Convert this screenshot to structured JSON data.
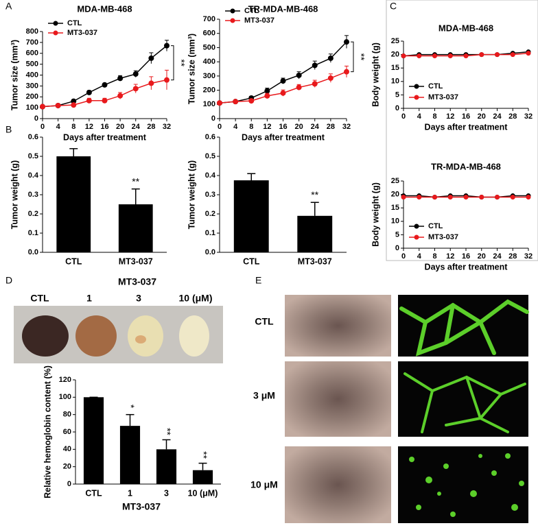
{
  "chart_data": [
    {
      "type": "line",
      "title": "MDA-MB-468",
      "xlabel": "Days after treatment",
      "ylabel": "Tumor size (mm³)",
      "x": [
        0,
        4,
        8,
        12,
        16,
        20,
        24,
        28,
        32
      ],
      "xlim": [
        0,
        32
      ],
      "xticks": [
        0,
        4,
        8,
        12,
        16,
        20,
        24,
        28,
        32
      ],
      "ylim": [
        0,
        800
      ],
      "yticks": [
        0,
        100,
        200,
        300,
        400,
        500,
        600,
        700,
        800
      ],
      "legend": "upper left",
      "annotation": "**",
      "series": [
        {
          "name": "CTL",
          "color": "#000000",
          "values": [
            110,
            120,
            160,
            240,
            310,
            370,
            410,
            555,
            670
          ],
          "errors": [
            8,
            8,
            12,
            18,
            15,
            25,
            30,
            50,
            50
          ]
        },
        {
          "name": "MT3-037",
          "color": "#e8191c",
          "values": [
            110,
            120,
            125,
            165,
            165,
            210,
            275,
            325,
            355
          ],
          "errors": [
            8,
            8,
            12,
            22,
            22,
            30,
            40,
            60,
            90
          ]
        }
      ]
    },
    {
      "type": "line",
      "title": "TR-MDA-MB-468",
      "xlabel": "Days after treatment",
      "ylabel": "Tumor size (mm³)",
      "x": [
        0,
        4,
        8,
        12,
        16,
        20,
        24,
        28,
        32
      ],
      "xlim": [
        0,
        32
      ],
      "xticks": [
        0,
        4,
        8,
        12,
        16,
        20,
        24,
        28,
        32
      ],
      "ylim": [
        0,
        700
      ],
      "yticks": [
        0,
        100,
        200,
        300,
        400,
        500,
        600,
        700
      ],
      "legend": "upper left",
      "annotation": "**",
      "series": [
        {
          "name": "CTL",
          "color": "#000000",
          "values": [
            110,
            120,
            145,
            195,
            265,
            305,
            375,
            425,
            540
          ],
          "errors": [
            8,
            8,
            12,
            20,
            20,
            25,
            30,
            30,
            45
          ]
        },
        {
          "name": "MT3-037",
          "color": "#e8191c",
          "values": [
            110,
            120,
            125,
            160,
            180,
            220,
            245,
            285,
            330
          ],
          "errors": [
            8,
            8,
            12,
            18,
            22,
            20,
            25,
            30,
            40
          ]
        }
      ]
    },
    {
      "type": "bar",
      "ylabel": "Tumor weight (g)",
      "categories": [
        "CTL",
        "MT3-037"
      ],
      "values": [
        0.5,
        0.25
      ],
      "errors": [
        0.04,
        0.08
      ],
      "color": "#000000",
      "ylim": [
        0,
        0.6
      ],
      "yticks": [
        {
          "value": 0,
          "label": "0.0"
        },
        0.1,
        0.2,
        0.3,
        0.4,
        0.5,
        0.6
      ],
      "significance": [
        "**"
      ]
    },
    {
      "type": "bar",
      "ylabel": "Tumor weight (g)",
      "categories": [
        "CTL",
        "MT3-037"
      ],
      "values": [
        0.375,
        0.19
      ],
      "errors": [
        0.035,
        0.07
      ],
      "color": "#000000",
      "ylim": [
        0,
        0.6
      ],
      "yticks": [
        {
          "value": 0,
          "label": "0.0"
        },
        0.1,
        0.2,
        0.3,
        0.4,
        0.5,
        0.6
      ],
      "significance": [
        "**"
      ]
    },
    {
      "type": "line",
      "title": "MDA-MB-468",
      "xlabel": "Days after treatment",
      "ylabel": "Body weight (g)",
      "x": [
        0,
        4,
        8,
        12,
        16,
        20,
        24,
        28,
        32
      ],
      "xlim": [
        0,
        32
      ],
      "xticks": [
        0,
        4,
        8,
        12,
        16,
        20,
        24,
        28,
        32
      ],
      "ylim": [
        0,
        25
      ],
      "yticks": [
        0,
        5,
        10,
        15,
        20,
        25
      ],
      "legend": "lower left",
      "series": [
        {
          "name": "CTL",
          "color": "#000000",
          "values": [
            19.5,
            20,
            20,
            20,
            20,
            20,
            20,
            20.5,
            21
          ]
        },
        {
          "name": "MT3-037",
          "color": "#e8191c",
          "values": [
            19.5,
            19.5,
            19.5,
            19.5,
            19.5,
            20,
            20,
            20,
            20.5
          ]
        }
      ]
    },
    {
      "type": "line",
      "title": "TR-MDA-MB-468",
      "xlabel": "Days after treatment",
      "ylabel": "Body weight (g)",
      "x": [
        0,
        4,
        8,
        12,
        16,
        20,
        24,
        28,
        32
      ],
      "xlim": [
        0,
        32
      ],
      "xticks": [
        0,
        4,
        8,
        12,
        16,
        20,
        24,
        28,
        32
      ],
      "ylim": [
        0,
        25
      ],
      "yticks": [
        0,
        5,
        10,
        15,
        20,
        25
      ],
      "legend": "lower left",
      "series": [
        {
          "name": "CTL",
          "color": "#000000",
          "values": [
            19.5,
            19.5,
            19,
            19.5,
            19.5,
            19,
            19,
            19.5,
            19.5
          ]
        },
        {
          "name": "MT3-037",
          "color": "#e8191c",
          "values": [
            19,
            19,
            19,
            19,
            19,
            19,
            19,
            19,
            19
          ]
        }
      ]
    },
    {
      "type": "bar",
      "ylabel": "Relative hemoglobin content (%)",
      "xlabel": "MT3-037",
      "categories": [
        "CTL",
        "1",
        "3",
        "10 (μM)"
      ],
      "values": [
        100,
        67,
        40,
        16
      ],
      "errors": [
        0,
        13,
        11,
        8
      ],
      "color": "#000000",
      "ylim": [
        0,
        120
      ],
      "yticks": [
        0,
        20,
        40,
        60,
        80,
        100,
        120
      ],
      "significance": [
        "*",
        "**",
        "**"
      ]
    }
  ],
  "panel_labels": [
    "A",
    "B",
    "C",
    "D",
    "E"
  ],
  "photo_d": {
    "title": "MT3-037",
    "labels": [
      "CTL",
      "1",
      "3",
      "10 (μM)"
    ]
  },
  "photo_e": {
    "rows": [
      "CTL",
      "3 μM",
      "10 μM"
    ]
  }
}
